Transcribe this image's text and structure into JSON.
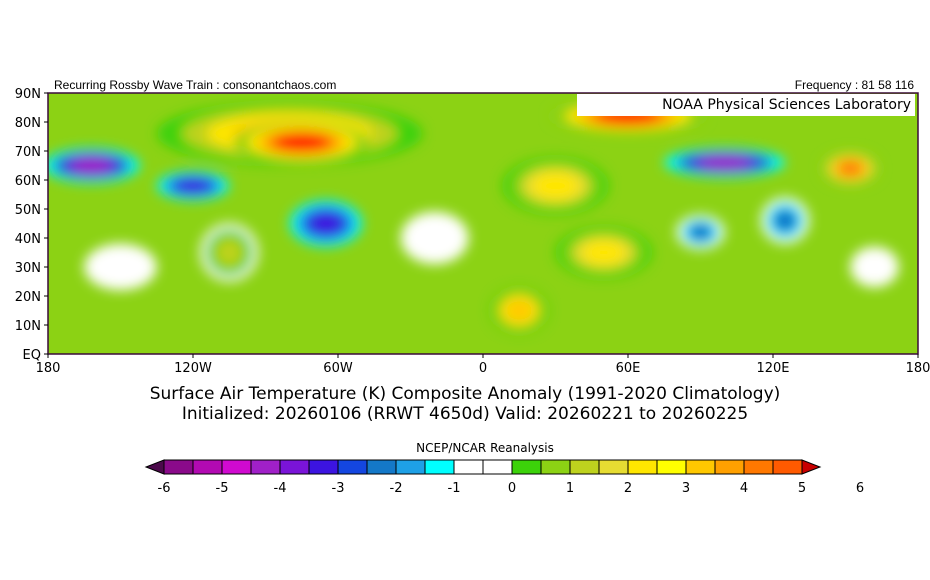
{
  "header": {
    "left_text": "Recurring Rossby Wave Train : consonantchaos.com",
    "right_text": "Frequency : 81 58 116",
    "lab_label": "NOAA Physical Sciences Laboratory"
  },
  "map": {
    "lat_labels": [
      "90N",
      "80N",
      "70N",
      "60N",
      "50N",
      "40N",
      "30N",
      "20N",
      "10N",
      "EQ"
    ],
    "lat_values": [
      90,
      80,
      70,
      60,
      50,
      40,
      30,
      20,
      10,
      0
    ],
    "lon_labels": [
      "180",
      "120W",
      "60W",
      "0",
      "60E",
      "120E",
      "180"
    ],
    "lon_values": [
      -180,
      -120,
      -60,
      0,
      60,
      120,
      180
    ],
    "background_value": 1,
    "anomaly_regions": [
      {
        "name": "arctic-canada-greenland-warm",
        "lon": -80,
        "lat": 76,
        "rlon": 55,
        "rlat": 11,
        "value": 4
      },
      {
        "name": "greenland-core-warm",
        "lon": -75,
        "lat": 73,
        "rlon": 28,
        "rlat": 7,
        "value": 6
      },
      {
        "name": "barents-kara-warm",
        "lon": 60,
        "lat": 82,
        "rlon": 32,
        "rlat": 6,
        "value": 6
      },
      {
        "name": "europe-warm",
        "lon": 30,
        "lat": 58,
        "rlon": 22,
        "rlat": 10,
        "value": 3
      },
      {
        "name": "africa-warm",
        "lon": 15,
        "lat": 15,
        "rlon": 12,
        "rlat": 8,
        "value": 4
      },
      {
        "name": "middle-east-warm",
        "lon": 50,
        "lat": 35,
        "rlon": 20,
        "rlat": 9,
        "value": 3
      },
      {
        "name": "us-southwest-warm",
        "lon": -105,
        "lat": 35,
        "rlon": 12,
        "rlat": 10,
        "value": 2
      },
      {
        "name": "far-east-warm",
        "lon": 152,
        "lat": 64,
        "rlon": 12,
        "rlat": 6,
        "value": 5
      },
      {
        "name": "alaska-cold",
        "lon": -162,
        "lat": 65,
        "rlon": 20,
        "rlat": 6,
        "value": -4
      },
      {
        "name": "canada-cold",
        "lon": -120,
        "lat": 58,
        "rlon": 15,
        "rlat": 5,
        "value": -3
      },
      {
        "name": "eastern-us-cold",
        "lon": -65,
        "lat": 45,
        "rlon": 15,
        "rlat": 8,
        "value": -3
      },
      {
        "name": "siberia-cold",
        "lon": 100,
        "lat": 66,
        "rlon": 25,
        "rlat": 5,
        "value": -4
      },
      {
        "name": "central-asia-cold",
        "lon": 90,
        "lat": 42,
        "rlon": 10,
        "rlat": 6,
        "value": -2
      },
      {
        "name": "east-asia-cold",
        "lon": 125,
        "lat": 46,
        "rlon": 10,
        "rlat": 8,
        "value": -2
      },
      {
        "name": "atlantic-neutral",
        "lon": -20,
        "lat": 40,
        "rlon": 14,
        "rlat": 9,
        "value": 0
      },
      {
        "name": "pacific-neutral",
        "lon": -150,
        "lat": 30,
        "rlon": 15,
        "rlat": 8,
        "value": 0
      },
      {
        "name": "west-pacific-neutral",
        "lon": 162,
        "lat": 30,
        "rlon": 10,
        "rlat": 7,
        "value": 0
      }
    ]
  },
  "title": {
    "line1": "Surface Air Temperature (K) Composite Anomaly (1991-2020 Climatology)",
    "line2": "Initialized: 20260106 (RRWT 4650d) Valid: 20260221 to 20260225"
  },
  "colorbar": {
    "label": "NCEP/NCAR Reanalysis",
    "tick_labels": [
      "-6",
      "-5",
      "-4",
      "-3",
      "-2",
      "-1",
      "0",
      "1",
      "2",
      "3",
      "4",
      "5",
      "6"
    ],
    "low_arrow_color": "#4b0a4b",
    "high_arrow_color": "#c80000",
    "colors": [
      "#4b0a4b",
      "#8a0a8a",
      "#b20ab2",
      "#d00ad0",
      "#a020c8",
      "#7a14d8",
      "#3c14e0",
      "#1446e0",
      "#1478c8",
      "#1ea0e6",
      "#00ffff",
      "#ffffff",
      "#ffffff",
      "#3cd20a",
      "#8cd214",
      "#bed21e",
      "#e6dc32",
      "#ffe600",
      "#ffff00",
      "#ffc800",
      "#ffa000",
      "#ff7800",
      "#ff5a00",
      "#ff0000"
    ],
    "bins": [
      -6,
      -5.5,
      -5,
      -4.5,
      -4,
      -3.5,
      -3,
      -2.5,
      -2,
      -1.5,
      -1,
      -0.5,
      0,
      0.5,
      1,
      1.5,
      2,
      2.5,
      3,
      3.5,
      4,
      4.5,
      5,
      5.5,
      6
    ]
  }
}
